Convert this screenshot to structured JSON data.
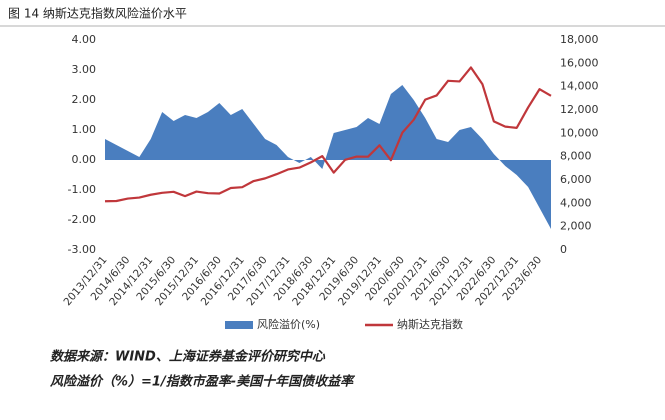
{
  "chart_data": {
    "type": "area-line",
    "title": "图 14  纳斯达克指数风险溢价水平",
    "categories": [
      "2013/12/31",
      null,
      "2014/6/30",
      null,
      "2014/12/31",
      null,
      "2015/6/30",
      null,
      "2015/12/31",
      null,
      "2016/6/30",
      null,
      "2016/12/31",
      null,
      "2017/6/30",
      null,
      "2017/12/31",
      null,
      "2018/6/30",
      null,
      "2018/12/31",
      null,
      "2019/6/30",
      null,
      "2019/12/31",
      null,
      "2020/6/30",
      null,
      "2020/12/31",
      null,
      "2021/6/30",
      null,
      "2021/12/31",
      null,
      "2022/6/30",
      null,
      "2022/12/31",
      null,
      "2023/6/30",
      null
    ],
    "series": [
      {
        "name": "风险溢价(%)",
        "color": "#4a7ebf",
        "kind": "area",
        "values": [
          0.7,
          0.5,
          0.3,
          0.1,
          0.7,
          1.6,
          1.3,
          1.5,
          1.4,
          1.6,
          1.9,
          1.5,
          1.7,
          1.2,
          0.7,
          0.5,
          0.1,
          -0.1,
          0.1,
          -0.3,
          0.9,
          1.0,
          1.1,
          1.4,
          1.2,
          2.2,
          2.5,
          2.0,
          1.4,
          0.7,
          0.6,
          1.0,
          1.1,
          0.7,
          0.2,
          -0.2,
          -0.5,
          -0.9,
          -1.6,
          -2.3
        ]
      },
      {
        "name": "纳斯达克指数",
        "color": "#c0373b",
        "kind": "line",
        "axis": "y2",
        "values": [
          4177,
          4199,
          4408,
          4493,
          4736,
          4901,
          4987,
          4620,
          5007,
          4870,
          4843,
          5312,
          5383,
          5912,
          6140,
          6496,
          6903,
          7063,
          7510,
          8046,
          6635,
          7729,
          8006,
          7999,
          8973,
          7700,
          10058,
          11168,
          12888,
          13247,
          14504,
          14448,
          15645,
          14220,
          11029,
          10576,
          10466,
          12222,
          13788,
          13219
        ]
      }
    ],
    "ylim": [
      -3,
      4
    ],
    "yticks": [
      {
        "value": 4,
        "label": "4.00"
      },
      {
        "value": 3,
        "label": "3.00"
      },
      {
        "value": 2,
        "label": "2.00"
      },
      {
        "value": 1,
        "label": "1.00"
      },
      {
        "value": 0,
        "label": "0.00"
      },
      {
        "value": -1,
        "label": "-1.00"
      },
      {
        "value": -2,
        "label": "-2.00"
      },
      {
        "value": -3,
        "label": "-3.00"
      }
    ],
    "y2lim": [
      0,
      18000
    ],
    "y2ticks": [
      {
        "value": 18000,
        "label": "18,000"
      },
      {
        "value": 16000,
        "label": "16,000"
      },
      {
        "value": 14000,
        "label": "14,000"
      },
      {
        "value": 12000,
        "label": "12,000"
      },
      {
        "value": 10000,
        "label": "10,000"
      },
      {
        "value": 8000,
        "label": "8,000"
      },
      {
        "value": 6000,
        "label": "6,000"
      },
      {
        "value": 4000,
        "label": "4,000"
      },
      {
        "value": 2000,
        "label": "2,000"
      },
      0
    ],
    "grid": false,
    "legend": "bottom",
    "notes": [
      "数据来源：WIND、上海证券基金评价研究中心",
      "风险溢价（%）=1/指数市盈率-美国十年国债收益率"
    ]
  }
}
